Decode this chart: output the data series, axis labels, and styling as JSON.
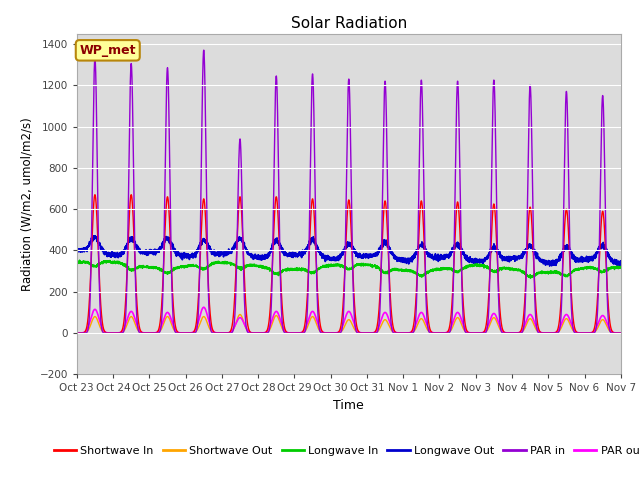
{
  "title": "Solar Radiation",
  "ylabel": "Radiation (W/m2, umol/m2/s)",
  "xlabel": "Time",
  "ylim": [
    -200,
    1450
  ],
  "yticks": [
    -200,
    0,
    200,
    400,
    600,
    800,
    1000,
    1200,
    1400
  ],
  "annotation_text": "WP_met",
  "annotation_color": "#8B0000",
  "annotation_bg": "#FFFF99",
  "bg_color": "#DCDCDC",
  "colors": {
    "shortwave_in": "#FF0000",
    "shortwave_out": "#FFA500",
    "longwave_in": "#00CC00",
    "longwave_out": "#0000CD",
    "par_in": "#9400D3",
    "par_out": "#FF00FF"
  },
  "x_tick_labels": [
    "Oct 23",
    "Oct 24",
    "Oct 25",
    "Oct 26",
    "Oct 27",
    "Oct 28",
    "Oct 29",
    "Oct 30",
    "Oct 31",
    "Nov 1",
    "Nov 2",
    "Nov 3",
    "Nov 4",
    "Nov 5",
    "Nov 6",
    "Nov 7"
  ],
  "num_days": 15,
  "legend": [
    "Shortwave In",
    "Shortwave Out",
    "Longwave In",
    "Longwave Out",
    "PAR in",
    "PAR out"
  ]
}
